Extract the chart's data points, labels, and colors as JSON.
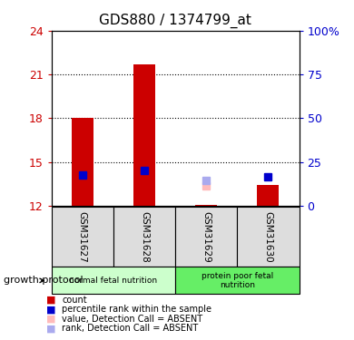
{
  "title": "GDS880 / 1374799_at",
  "samples": [
    "GSM31627",
    "GSM31628",
    "GSM31629",
    "GSM31630"
  ],
  "left_ylim": [
    12,
    24
  ],
  "left_yticks": [
    12,
    15,
    18,
    21,
    24
  ],
  "right_ylim": [
    0,
    100
  ],
  "right_yticks": [
    0,
    25,
    50,
    75,
    100
  ],
  "right_yticklabels": [
    "0",
    "25",
    "50",
    "75",
    "100%"
  ],
  "bar_base": 12,
  "bar_tops": [
    18.0,
    21.7,
    12.08,
    13.4
  ],
  "bar_color": "#cc0000",
  "blue_square_y": [
    14.1,
    14.4,
    null,
    14.0
  ],
  "blue_square_color": "#0000cc",
  "absent_value_y": [
    null,
    null,
    13.35,
    null
  ],
  "absent_value_color": "#ffbbbb",
  "absent_rank_y": [
    null,
    null,
    13.75,
    null
  ],
  "absent_rank_color": "#aaaaee",
  "group1_samples": [
    0,
    1
  ],
  "group2_samples": [
    2,
    3
  ],
  "group1_label": "normal fetal nutrition",
  "group2_label": "protein poor fetal\nnutrition",
  "group1_color": "#ccffcc",
  "group2_color": "#66ee66",
  "xlabel_label": "growth protocol",
  "bar_width": 0.35,
  "marker_size": 6,
  "left_tick_color": "#cc0000",
  "right_tick_color": "#0000cc",
  "sample_box_color": "#dddddd",
  "legend_items": [
    {
      "color": "#cc0000",
      "label": "count"
    },
    {
      "color": "#0000cc",
      "label": "percentile rank within the sample"
    },
    {
      "color": "#ffbbbb",
      "label": "value, Detection Call = ABSENT"
    },
    {
      "color": "#aaaaee",
      "label": "rank, Detection Call = ABSENT"
    }
  ]
}
